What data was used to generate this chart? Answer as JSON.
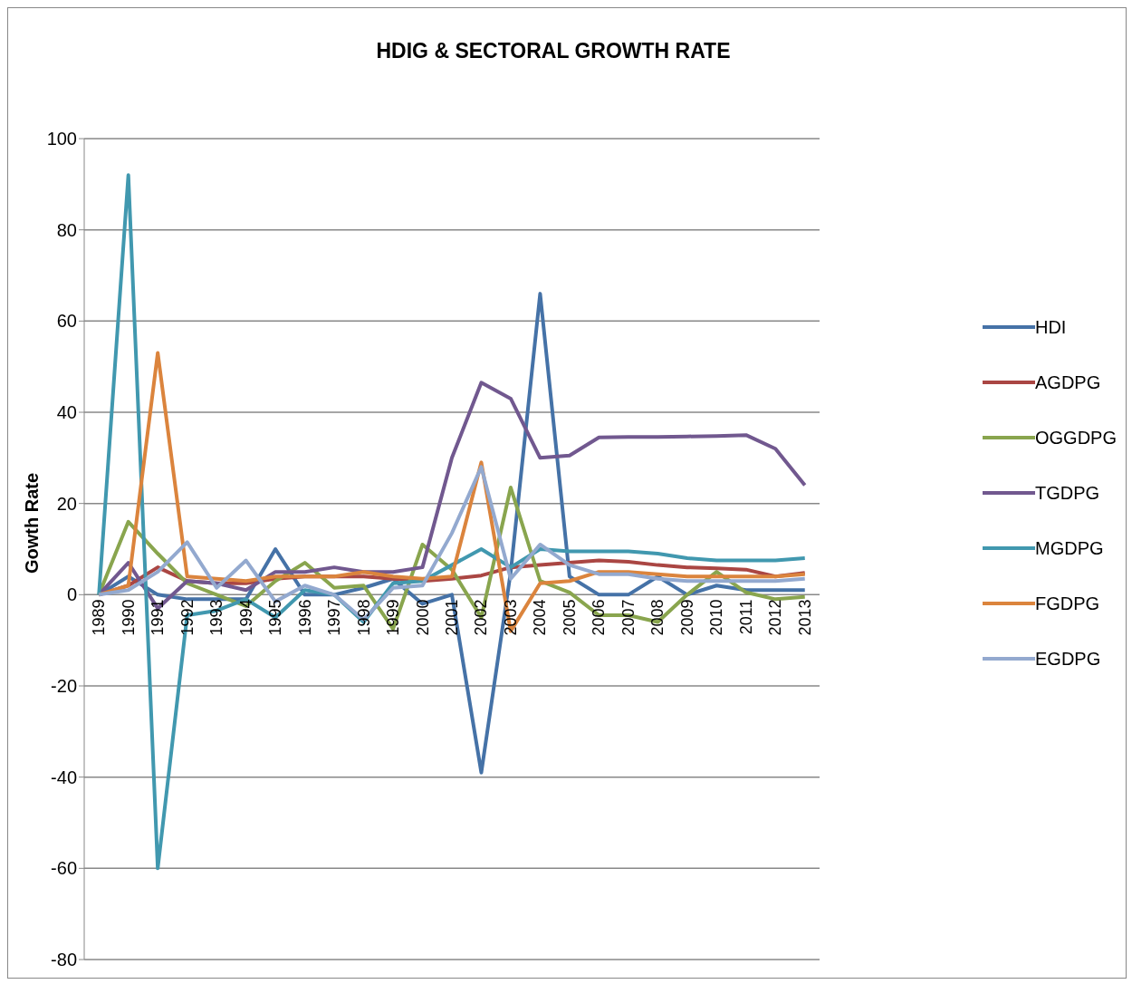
{
  "chart_data": {
    "type": "line",
    "title": "HDIG & SECTORAL GROWTH RATE",
    "ylabel": "Gowth Rate",
    "categories": [
      "1989",
      "1990",
      "1991",
      "1992",
      "1993",
      "1994",
      "1995",
      "1996",
      "1997",
      "1998",
      "1999",
      "2000",
      "2001",
      "2002",
      "2003",
      "2004",
      "2005",
      "2006",
      "2007",
      "2008",
      "2009",
      "2010",
      "2011",
      "2012",
      "2013"
    ],
    "series": [
      {
        "name": "HDI",
        "color": "#4572a7",
        "values": [
          0,
          4,
          0,
          -1,
          -1,
          -1,
          10,
          0,
          0,
          1.5,
          3.5,
          -2,
          0,
          -39,
          5,
          66,
          4,
          0,
          0,
          4,
          0,
          2,
          1,
          1,
          1
        ]
      },
      {
        "name": "AGDPG",
        "color": "#aa4643",
        "values": [
          0,
          2,
          6,
          3,
          2.5,
          2.5,
          3.5,
          4,
          4,
          4,
          3.5,
          3,
          3.5,
          4.2,
          6,
          6.5,
          7,
          7.5,
          7.2,
          6.5,
          6,
          5.8,
          5.5,
          4,
          4.8
        ]
      },
      {
        "name": "OGGDPG",
        "color": "#89a54e",
        "values": [
          0,
          16,
          9,
          2.5,
          0,
          -2.5,
          3,
          7,
          1.5,
          2,
          -7.5,
          11,
          5.5,
          -5,
          23.5,
          3,
          0.5,
          -4.5,
          -4.5,
          -6,
          0,
          5,
          0.5,
          -1,
          -0.5
        ]
      },
      {
        "name": "TGDPG",
        "color": "#71588f",
        "values": [
          0,
          7,
          -3,
          3,
          2.5,
          1,
          5,
          5,
          6,
          5,
          5,
          6,
          30,
          46.5,
          43,
          30,
          30.5,
          34.5,
          34.6,
          34.6,
          34.7,
          34.8,
          35,
          32,
          24
        ]
      },
      {
        "name": "MGDPG",
        "color": "#4198af",
        "values": [
          0,
          92,
          -60,
          -4.5,
          -3.5,
          -1,
          -5,
          1,
          0,
          -6,
          2.5,
          3,
          6.5,
          10,
          6,
          10,
          9.5,
          9.5,
          9.5,
          9,
          8,
          7.5,
          7.5,
          7.5,
          8
        ]
      },
      {
        "name": "FGDPG",
        "color": "#db843d",
        "values": [
          0,
          2,
          53,
          4,
          3.5,
          3,
          4,
          4,
          4,
          5,
          4,
          3.5,
          4,
          29,
          -8,
          2.5,
          3,
          5,
          5,
          4.5,
          4,
          4,
          4,
          4,
          4.5
        ]
      },
      {
        "name": "EGDPG",
        "color": "#93a9cf",
        "values": [
          0,
          1,
          5,
          11.5,
          1.5,
          7.5,
          -1.5,
          2,
          0,
          -5.5,
          1.5,
          2,
          13.5,
          28,
          3.5,
          11,
          6.5,
          4.5,
          4.5,
          3.5,
          3,
          3,
          3,
          3,
          3.5
        ]
      }
    ],
    "ylim": [
      -80,
      100
    ],
    "yticks": [
      -80,
      -60,
      -40,
      -20,
      0,
      20,
      40,
      60,
      80,
      100
    ],
    "grid": "y",
    "legend": "right",
    "marker": "none",
    "line_style": "solid"
  }
}
